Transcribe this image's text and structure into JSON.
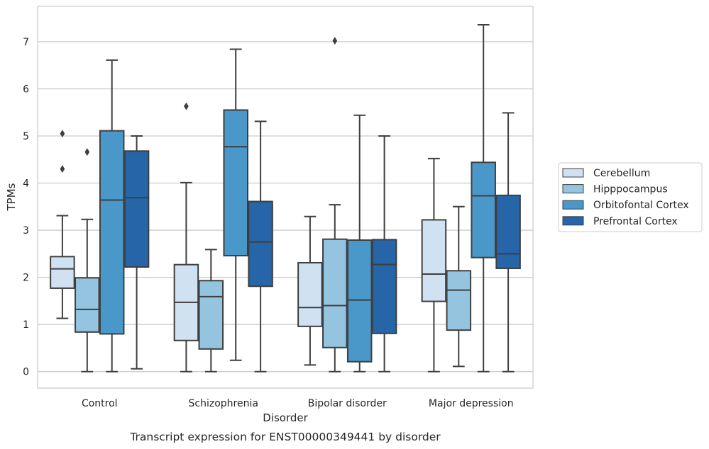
{
  "chart_data": {
    "type": "boxplot",
    "caption": "Transcript expression for ENST00000349441 by disorder",
    "xlabel": "Disorder",
    "ylabel": "TPMs",
    "ylim": [
      -0.35,
      7.75
    ],
    "yticks": [
      0,
      1,
      2,
      3,
      4,
      5,
      6,
      7
    ],
    "grid": "horizontal",
    "legend_position": "right",
    "categories": [
      "Control",
      "Schizophrenia",
      "Bipolar disorder",
      "Major depression"
    ],
    "series": [
      {
        "name": "Cerebellum",
        "color": "#d0e1f2",
        "boxes": [
          {
            "whislo": 1.13,
            "q1": 1.77,
            "med": 2.18,
            "q3": 2.44,
            "whishi": 3.31,
            "fliers": [
              4.3,
              5.05
            ]
          },
          {
            "whislo": 0.0,
            "q1": 0.66,
            "med": 1.47,
            "q3": 2.27,
            "whishi": 4.01,
            "fliers": [
              5.63
            ]
          },
          {
            "whislo": 0.14,
            "q1": 0.96,
            "med": 1.36,
            "q3": 2.31,
            "whishi": 3.29,
            "fliers": []
          },
          {
            "whislo": 0.0,
            "q1": 1.49,
            "med": 2.07,
            "q3": 3.22,
            "whishi": 4.52,
            "fliers": []
          }
        ]
      },
      {
        "name": "Hipppocampus",
        "color": "#94c4df",
        "boxes": [
          {
            "whislo": 0.0,
            "q1": 0.84,
            "med": 1.32,
            "q3": 1.99,
            "whishi": 3.23,
            "fliers": [
              4.66
            ]
          },
          {
            "whislo": 0.0,
            "q1": 0.48,
            "med": 1.59,
            "q3": 1.93,
            "whishi": 2.59,
            "fliers": []
          },
          {
            "whislo": 0.0,
            "q1": 0.51,
            "med": 1.4,
            "q3": 2.81,
            "whishi": 3.54,
            "fliers": [
              7.02
            ]
          },
          {
            "whislo": 0.11,
            "q1": 0.88,
            "med": 1.73,
            "q3": 2.14,
            "whishi": 3.5,
            "fliers": []
          }
        ]
      },
      {
        "name": "Orbitofontal Cortex",
        "color": "#4a98c9",
        "boxes": [
          {
            "whislo": 0.0,
            "q1": 0.8,
            "med": 3.64,
            "q3": 5.11,
            "whishi": 6.61,
            "fliers": []
          },
          {
            "whislo": 0.24,
            "q1": 2.46,
            "med": 4.77,
            "q3": 5.55,
            "whishi": 6.84,
            "fliers": []
          },
          {
            "whislo": 0.0,
            "q1": 0.21,
            "med": 1.52,
            "q3": 2.79,
            "whishi": 5.44,
            "fliers": []
          },
          {
            "whislo": 0.0,
            "q1": 2.42,
            "med": 3.73,
            "q3": 4.44,
            "whishi": 7.36,
            "fliers": []
          }
        ]
      },
      {
        "name": "Prefrontal Cortex",
        "color": "#2565a8",
        "boxes": [
          {
            "whislo": 0.06,
            "q1": 2.22,
            "med": 3.69,
            "q3": 4.68,
            "whishi": 5.0,
            "fliers": []
          },
          {
            "whislo": 0.0,
            "q1": 1.81,
            "med": 2.75,
            "q3": 3.61,
            "whishi": 5.31,
            "fliers": []
          },
          {
            "whislo": 0.0,
            "q1": 0.81,
            "med": 2.27,
            "q3": 2.8,
            "whishi": 5.0,
            "fliers": []
          },
          {
            "whislo": 0.0,
            "q1": 2.19,
            "med": 2.5,
            "q3": 3.74,
            "whishi": 5.49,
            "fliers": []
          }
        ]
      }
    ]
  }
}
